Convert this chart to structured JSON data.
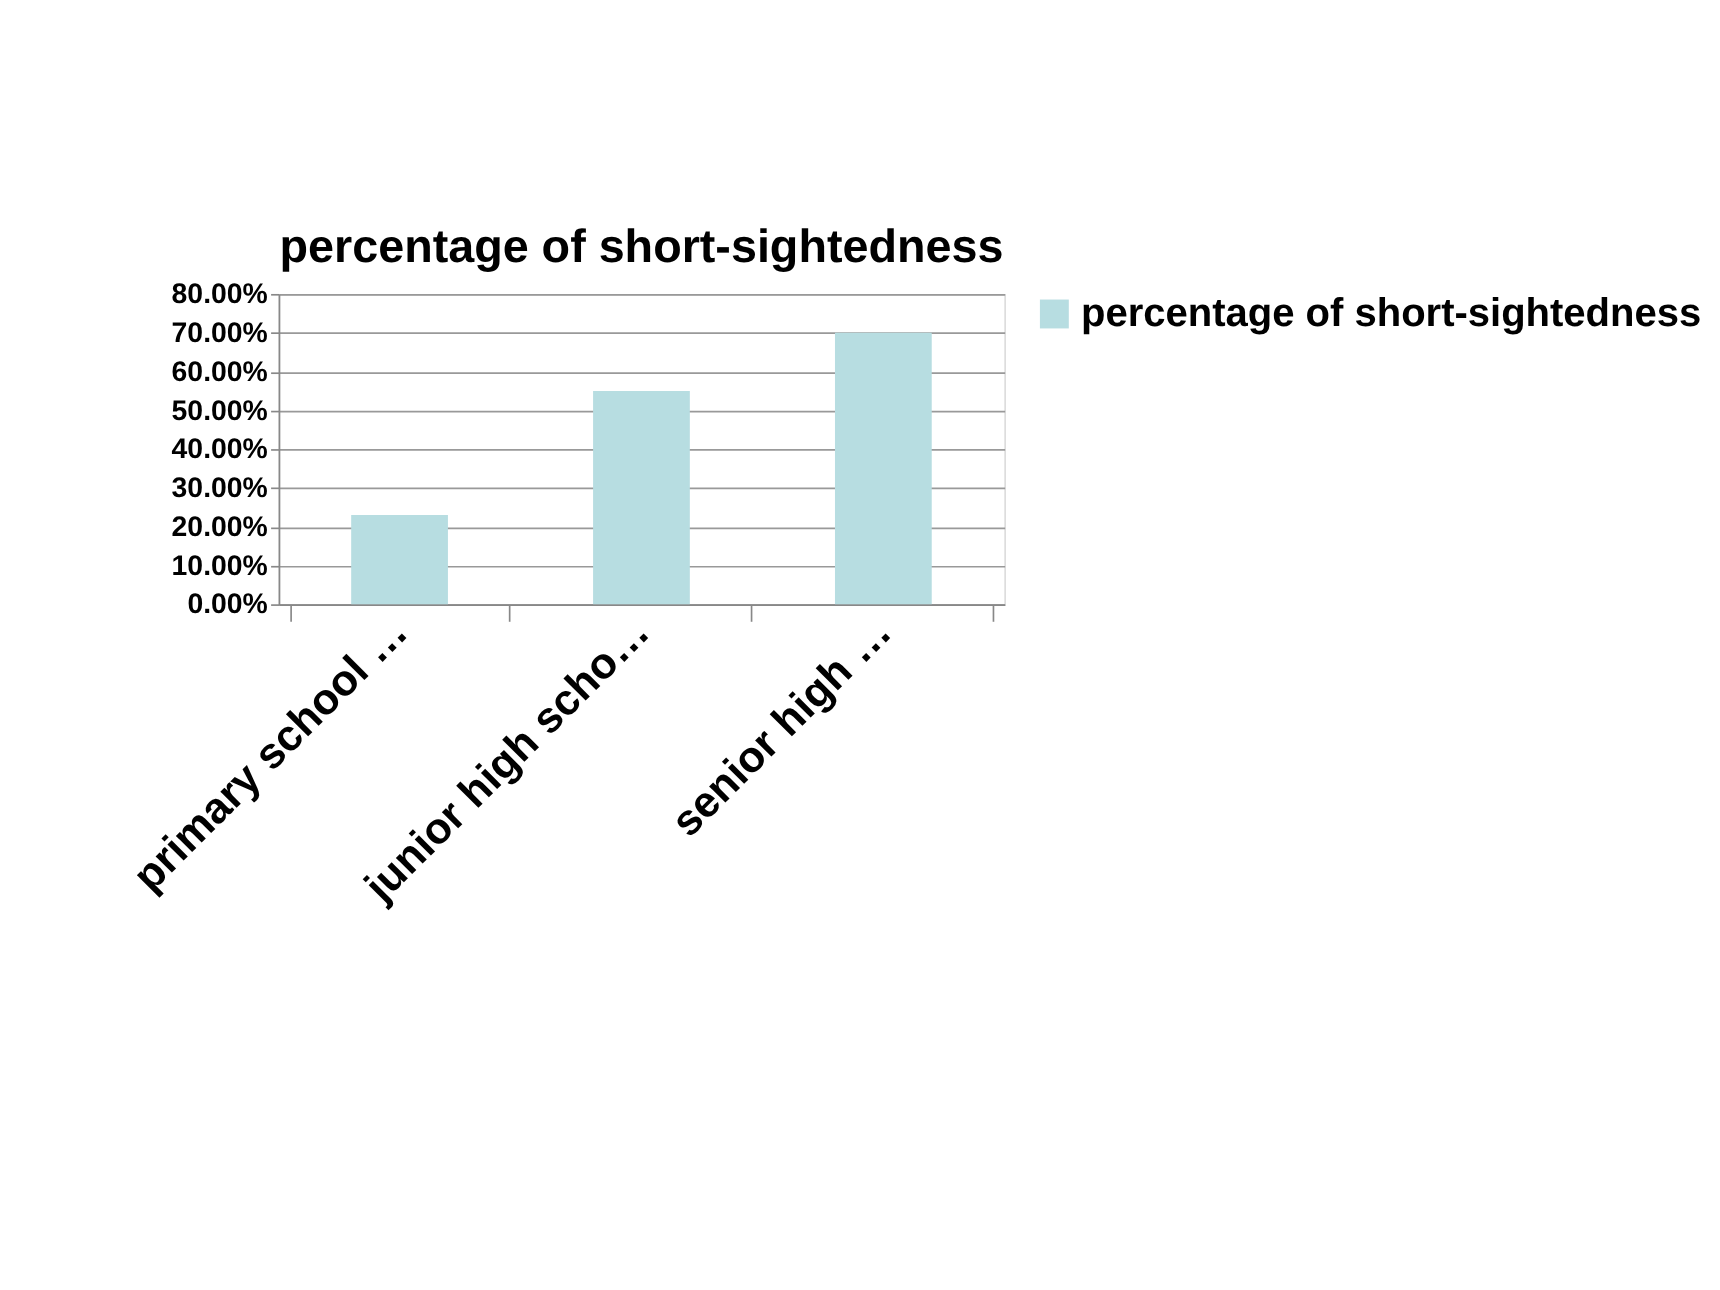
{
  "chart_data": {
    "type": "bar",
    "title": "percentage of short-sightedness",
    "categories": [
      "primary school …",
      "junior high scho…",
      "senior high …"
    ],
    "series": [
      {
        "name": "percentage of short-sightedness",
        "color": "#b7dde1",
        "values": [
          23,
          55,
          70
        ]
      }
    ],
    "ylim": [
      0,
      80
    ],
    "yticks": [
      {
        "value": 0,
        "label": "0.00%"
      },
      {
        "value": 10,
        "label": "10.00%"
      },
      {
        "value": 20,
        "label": "20.00%"
      },
      {
        "value": 30,
        "label": "30.00%"
      },
      {
        "value": 40,
        "label": "40.00%"
      },
      {
        "value": 50,
        "label": "50.00%"
      },
      {
        "value": 60,
        "label": "60.00%"
      },
      {
        "value": 70,
        "label": "70.00%"
      },
      {
        "value": 80,
        "label": "80.00%"
      }
    ],
    "grid": "y",
    "legend": "right"
  }
}
